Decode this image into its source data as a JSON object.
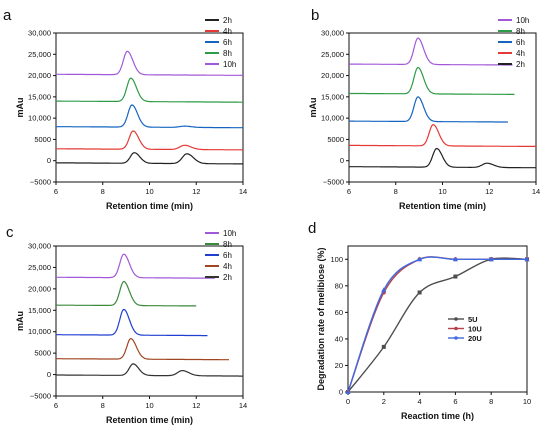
{
  "colors": {
    "2h": "#222222",
    "4h": "#e53935",
    "6h": "#1565c0",
    "8h": "#2e9b46",
    "10h": "#a259d9",
    "c2h": "#333333",
    "c4h": "#a0451f",
    "c6h": "#1f3fd0",
    "c8h": "#3a8a3a",
    "c10h": "#a259d9",
    "5U": "#4d4d4d",
    "10U": "#b5424b",
    "20U": "#4169e1"
  },
  "chart_data": [
    {
      "panel": "a",
      "type": "line",
      "xlabel": "Retention time (min)",
      "ylabel": "mAu",
      "xlim": [
        6,
        14
      ],
      "ylim": [
        -5000,
        30000
      ],
      "xticks": [
        "6",
        "8",
        "10",
        "12",
        "14"
      ],
      "yticks": [
        "−5000",
        "0",
        "5000",
        "10,000",
        "15,000",
        "20,000",
        "25,000",
        "30,000"
      ],
      "legend_position": "top-right",
      "legend": [
        "2h",
        "4h",
        "6h",
        "8h",
        "10h"
      ],
      "series": [
        {
          "name": "2h",
          "color_key": "2h",
          "baseline": -500,
          "x_end": 14,
          "peaks": [
            {
              "x": 9.35,
              "h": 2500,
              "w": 0.17
            },
            {
              "x": 11.6,
              "h": 2300,
              "w": 0.2
            }
          ]
        },
        {
          "name": "4h",
          "color_key": "4h",
          "baseline": 2800,
          "x_end": 14,
          "peaks": [
            {
              "x": 9.3,
              "h": 4300,
              "w": 0.17
            },
            {
              "x": 11.5,
              "h": 1000,
              "w": 0.2
            }
          ]
        },
        {
          "name": "6h",
          "color_key": "6h",
          "baseline": 8000,
          "x_end": 14,
          "peaks": [
            {
              "x": 9.25,
              "h": 5200,
              "w": 0.17
            },
            {
              "x": 11.5,
              "h": 300,
              "w": 0.2
            }
          ]
        },
        {
          "name": "8h",
          "color_key": "8h",
          "baseline": 14000,
          "x_end": 14,
          "peaks": [
            {
              "x": 9.2,
              "h": 5500,
              "w": 0.17
            }
          ]
        },
        {
          "name": "10h",
          "color_key": "10h",
          "baseline": 20300,
          "x_end": 14,
          "peaks": [
            {
              "x": 9.05,
              "h": 5500,
              "w": 0.17
            }
          ]
        }
      ]
    },
    {
      "panel": "b",
      "type": "line",
      "xlabel": "Retention time (min)",
      "ylabel": "mAu",
      "xlim": [
        6,
        14
      ],
      "ylim": [
        -5000,
        30000
      ],
      "xticks": [
        "6",
        "8",
        "10",
        "12",
        "14"
      ],
      "yticks": [
        "−5000",
        "0",
        "5000",
        "10,000",
        "15,000",
        "20,000",
        "25,000",
        "30,000"
      ],
      "legend_position": "top-right",
      "legend": [
        "10h",
        "8h",
        "6h",
        "4h",
        "2h"
      ],
      "series": [
        {
          "name": "2h",
          "color_key": "2h",
          "baseline": -1400,
          "x_end": 14,
          "peaks": [
            {
              "x": 9.75,
              "h": 4400,
              "w": 0.17
            },
            {
              "x": 11.9,
              "h": 1000,
              "w": 0.2
            }
          ]
        },
        {
          "name": "4h",
          "color_key": "4h",
          "baseline": 3600,
          "x_end": 14,
          "peaks": [
            {
              "x": 9.6,
              "h": 5000,
              "w": 0.17
            }
          ]
        },
        {
          "name": "6h",
          "color_key": "6h",
          "baseline": 9300,
          "x_end": 12.8,
          "peaks": [
            {
              "x": 8.95,
              "h": 5800,
              "w": 0.17
            }
          ]
        },
        {
          "name": "8h",
          "color_key": "8h",
          "baseline": 15800,
          "x_end": 13.1,
          "peaks": [
            {
              "x": 8.95,
              "h": 6200,
              "w": 0.17
            }
          ]
        },
        {
          "name": "10h",
          "color_key": "10h",
          "baseline": 22700,
          "x_end": 13.0,
          "peaks": [
            {
              "x": 8.95,
              "h": 6200,
              "w": 0.17
            }
          ]
        }
      ]
    },
    {
      "panel": "c",
      "type": "line",
      "xlabel": "Retention time (min)",
      "ylabel": "mAu",
      "xlim": [
        6,
        14
      ],
      "ylim": [
        -5000,
        30000
      ],
      "xticks": [
        "6",
        "8",
        "10",
        "12",
        "14"
      ],
      "yticks": [
        "−5000",
        "0",
        "5000",
        "10,000",
        "15,000",
        "20,000",
        "25,000",
        "30,000"
      ],
      "legend_position": "top-right",
      "legend": [
        "10h",
        "8h",
        "6h",
        "4h",
        "2h"
      ],
      "series": [
        {
          "name": "2h",
          "color_key": "c2h",
          "baseline": -100,
          "x_end": 14,
          "peaks": [
            {
              "x": 9.3,
              "h": 2700,
              "w": 0.17
            },
            {
              "x": 11.4,
              "h": 1200,
              "w": 0.2
            }
          ]
        },
        {
          "name": "4h",
          "color_key": "c4h",
          "baseline": 3700,
          "x_end": 13.4,
          "peaks": [
            {
              "x": 9.2,
              "h": 4800,
              "w": 0.17
            }
          ]
        },
        {
          "name": "6h",
          "color_key": "c6h",
          "baseline": 9300,
          "x_end": 12.5,
          "peaks": [
            {
              "x": 8.9,
              "h": 6000,
              "w": 0.17
            }
          ]
        },
        {
          "name": "8h",
          "color_key": "c8h",
          "baseline": 16200,
          "x_end": 12.0,
          "peaks": [
            {
              "x": 8.9,
              "h": 5600,
              "w": 0.17
            }
          ]
        },
        {
          "name": "10h",
          "color_key": "c10h",
          "baseline": 22700,
          "x_end": 12.8,
          "peaks": [
            {
              "x": 8.9,
              "h": 5500,
              "w": 0.17
            }
          ]
        }
      ]
    },
    {
      "panel": "d",
      "type": "line",
      "xlabel": "Reaction time (h)",
      "ylabel": "Degradation rate of melibiose (%)",
      "xlim": [
        0,
        10
      ],
      "ylim": [
        0,
        110
      ],
      "xticks": [
        "0",
        "2",
        "4",
        "6",
        "8",
        "10"
      ],
      "yticks": [
        "0",
        "20",
        "40",
        "60",
        "80",
        "100"
      ],
      "legend_position": "center-right",
      "legend": [
        "5U",
        "10U",
        "20U"
      ],
      "series": [
        {
          "name": "5U",
          "color_key": "5U",
          "x": [
            0,
            2,
            4,
            6,
            8,
            10
          ],
          "y": [
            0,
            34,
            75,
            87,
            100,
            100
          ]
        },
        {
          "name": "10U",
          "color_key": "10U",
          "x": [
            0,
            2,
            4,
            6,
            8,
            10
          ],
          "y": [
            0,
            75,
            100,
            100,
            100,
            100
          ]
        },
        {
          "name": "20U",
          "color_key": "20U",
          "x": [
            0,
            2,
            4,
            6,
            8,
            10
          ],
          "y": [
            0,
            77,
            100,
            100,
            100,
            100
          ]
        }
      ]
    }
  ]
}
